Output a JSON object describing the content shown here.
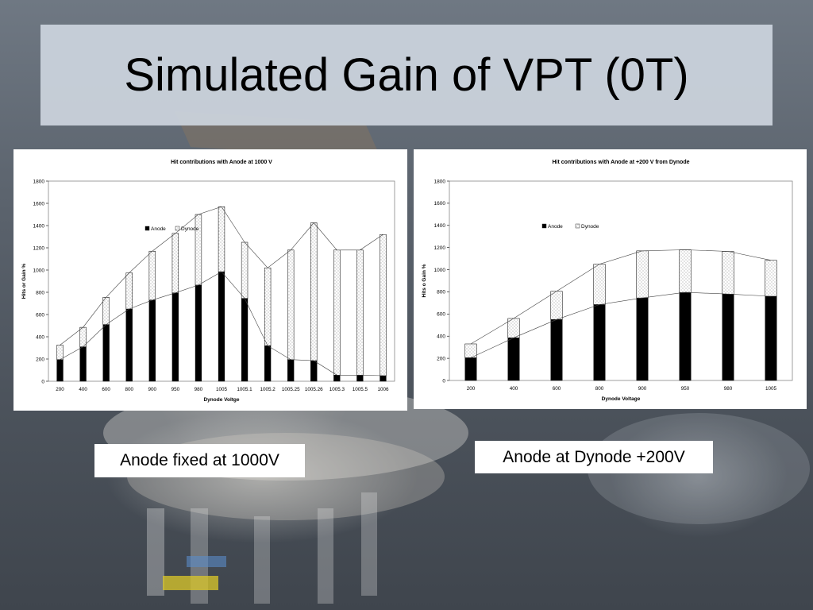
{
  "slide": {
    "title": "Simulated Gain of VPT (0T)",
    "caption_left": "Anode fixed at 1000V",
    "caption_right": "Anode at Dynode +200V"
  },
  "colors": {
    "title_band": "#cdd5de",
    "anode_fill": "#000000",
    "dynode_fill": "#ffffff"
  },
  "chart_data": [
    {
      "type": "bar",
      "stacked": true,
      "title": "Hit contributions with Anode at 1000 V",
      "xlabel": "Dynode Voltge",
      "ylabel": "Hits or Gain %",
      "ylim": [
        0,
        1800
      ],
      "yticks": [
        "0",
        "200",
        "400",
        "600",
        "800",
        "1000",
        "1200",
        "1400",
        "1600",
        "1800"
      ],
      "categories": [
        "200",
        "400",
        "600",
        "800",
        "900",
        "950",
        "980",
        "1005",
        "1005.1",
        "1005.2",
        "1005.25",
        "1005.26",
        "1005.3",
        "1005.5",
        "1006"
      ],
      "series": [
        {
          "name": "Anode",
          "values": [
            195,
            310,
            510,
            650,
            730,
            795,
            865,
            985,
            745,
            320,
            195,
            185,
            55,
            55,
            50
          ]
        },
        {
          "name": "Dynode",
          "values": [
            130,
            175,
            245,
            325,
            440,
            535,
            635,
            585,
            505,
            700,
            985,
            1240,
            1125,
            1125,
            1270
          ]
        }
      ],
      "legend_position": "top-center"
    },
    {
      "type": "bar",
      "stacked": true,
      "title": "Hit contributions with Anode at +200 V from Dynode",
      "xlabel": "Dynode Voltage",
      "ylabel": "Hits o Gain %",
      "ylim": [
        0,
        1800
      ],
      "yticks": [
        "0",
        "200",
        "400",
        "600",
        "800",
        "1000",
        "1200",
        "1400",
        "1600",
        "1800"
      ],
      "categories": [
        "200",
        "400",
        "600",
        "800",
        "900",
        "950",
        "980",
        "1005"
      ],
      "series": [
        {
          "name": "Anode",
          "values": [
            205,
            385,
            550,
            685,
            745,
            795,
            780,
            760
          ]
        },
        {
          "name": "Dynode",
          "values": [
            125,
            175,
            255,
            365,
            425,
            385,
            385,
            325
          ]
        }
      ],
      "legend_position": "top-left"
    }
  ]
}
